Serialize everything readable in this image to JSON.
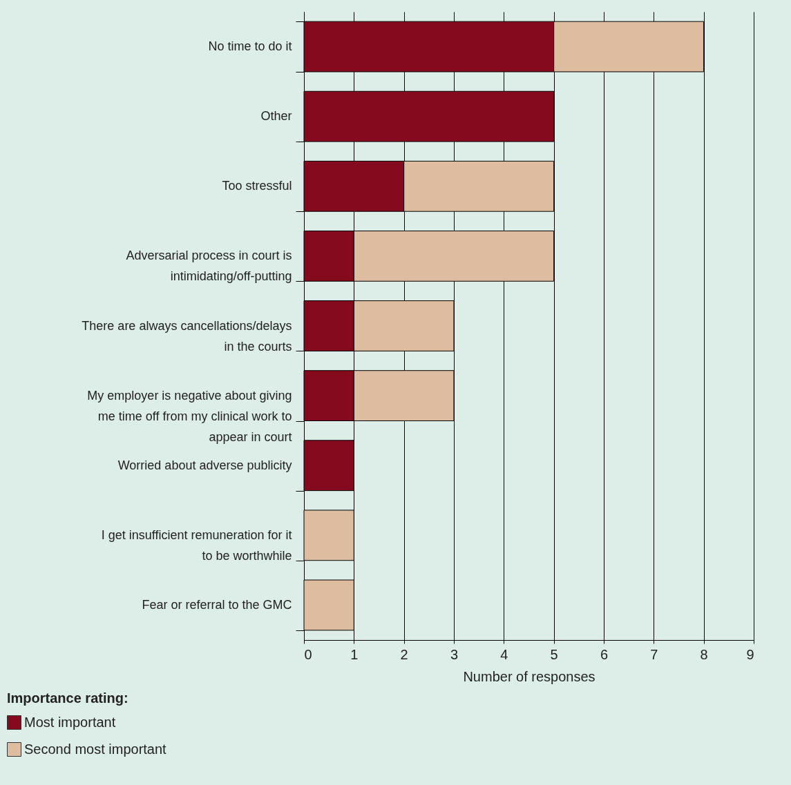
{
  "chart_data": {
    "type": "bar",
    "orientation": "horizontal",
    "stacked": true,
    "categories": [
      "No time to do it",
      "Other",
      "Too stressful",
      "Adversarial process in court is intimidating/off-putting",
      "There are always cancellations/delays in the courts",
      "My employer is negative about giving me time off from my clinical work to appear in court",
      "Worried about adverse publicity",
      "I get insufficient remuneration for it to be worthwhile",
      "Fear or referral to the GMC"
    ],
    "series": [
      {
        "name": "Most important",
        "color": "#850a1e",
        "values": [
          5,
          5,
          2,
          1,
          1,
          1,
          1,
          0,
          0
        ]
      },
      {
        "name": "Second most important",
        "color": "#ddbca0",
        "values": [
          3,
          0,
          3,
          4,
          2,
          2,
          0,
          1,
          1
        ]
      }
    ],
    "xlabel": "Number of responses",
    "legend_title": "Importance rating:",
    "legend": "bottom left",
    "xlim": [
      0,
      9
    ],
    "xticks": [
      0,
      1,
      2,
      3,
      4,
      5,
      6,
      7,
      8,
      9
    ],
    "grid": "x"
  }
}
